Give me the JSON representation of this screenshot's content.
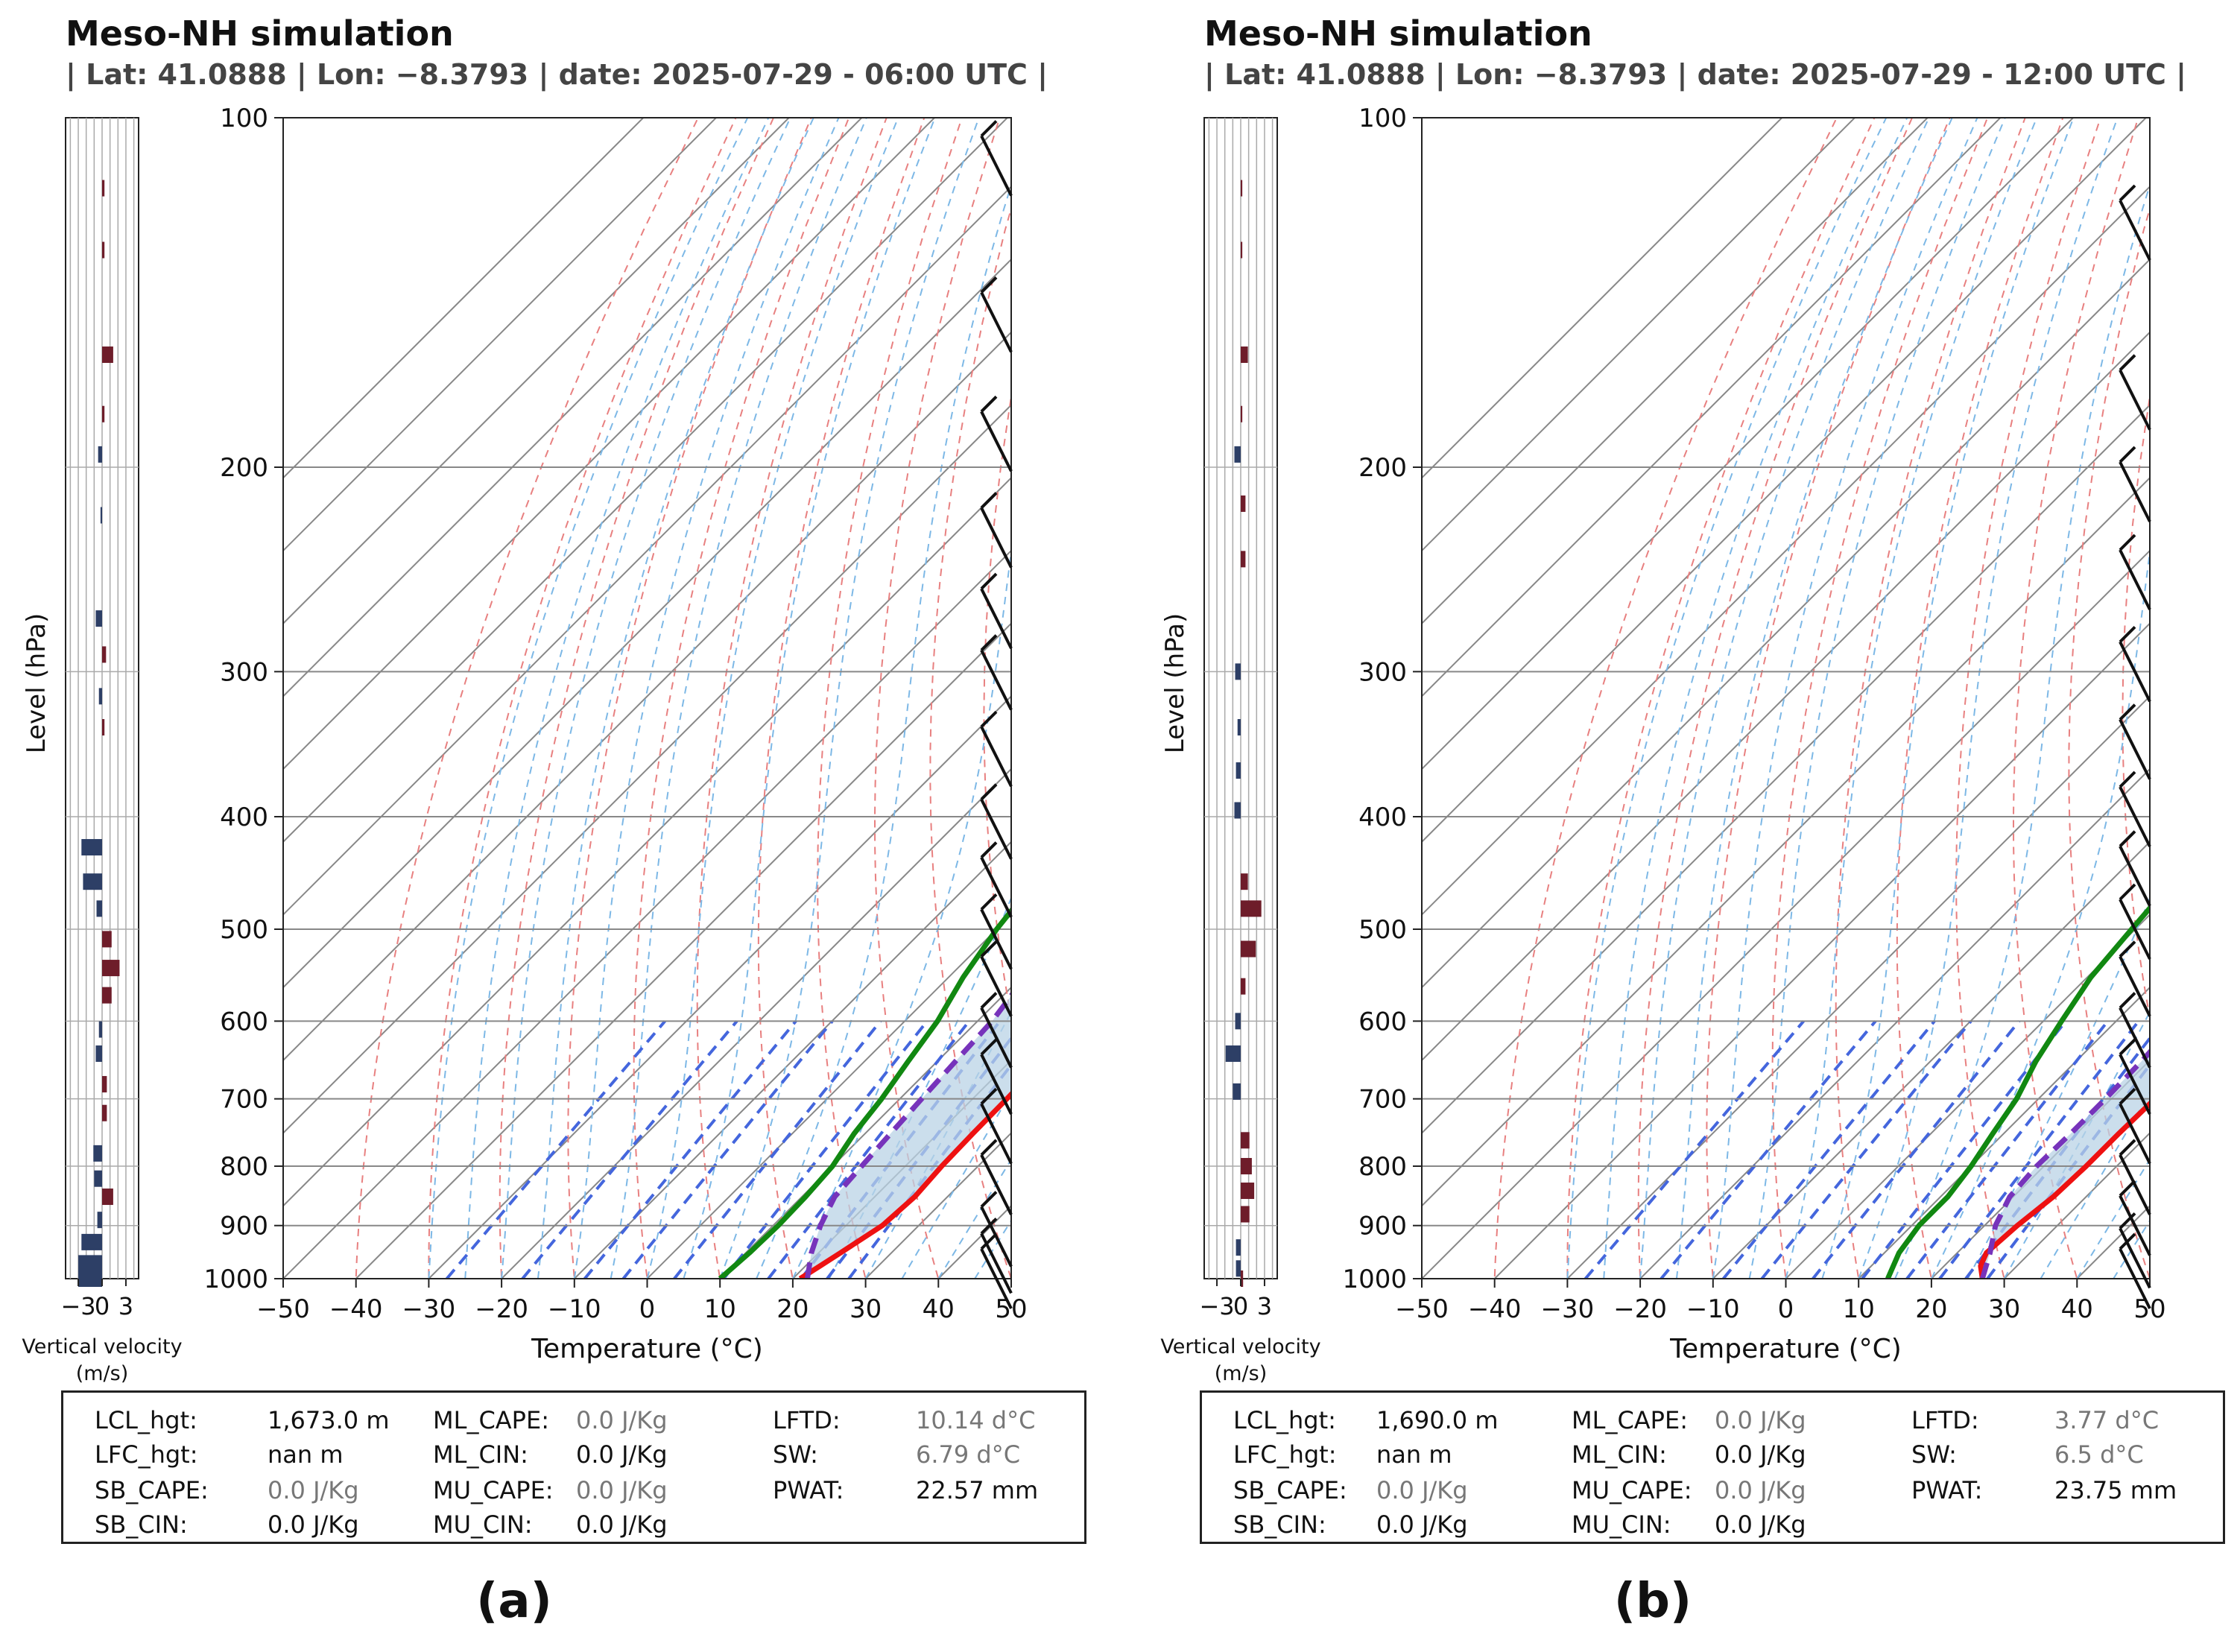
{
  "chart_data": [
    {
      "type": "line",
      "panel_label": "(a)",
      "title": "Meso-NH simulation",
      "subtitle": "| Lat: 41.0888 | Lon: −8.3793 | date: 2025-07-29 - 06:00 UTC |",
      "xlabel": "Temperature (°C)",
      "ylabel": "Level (hPa)",
      "xlim": [
        -50,
        50
      ],
      "ylim": [
        1000,
        100
      ],
      "y_scale": "log",
      "xticks": [
        "−50",
        "−40",
        "−30",
        "−20",
        "−10",
        "0",
        "10",
        "20",
        "30",
        "40",
        "50"
      ],
      "yticks": [
        "100",
        "200",
        "300",
        "400",
        "500",
        "600",
        "700",
        "800",
        "900",
        "1000"
      ],
      "series": [
        {
          "role": "temperature",
          "color": "#ee1111",
          "points": [
            [
              1000,
              21
            ],
            [
              975,
              22
            ],
            [
              950,
              23
            ],
            [
              900,
              25
            ],
            [
              850,
              25.5
            ],
            [
              800,
              25
            ],
            [
              750,
              24.8
            ],
            [
              700,
              24.7
            ],
            [
              650,
              24.5
            ],
            [
              600,
              23.5
            ],
            [
              550,
              21.5
            ],
            [
              500,
              19.5
            ],
            [
              450,
              17
            ],
            [
              400,
              14.5
            ],
            [
              350,
              12
            ],
            [
              300,
              9.5
            ],
            [
              250,
              7.5
            ],
            [
              200,
              7
            ],
            [
              175,
              8.5
            ],
            [
              150,
              9.5
            ],
            [
              125,
              11.5
            ],
            [
              100,
              14
            ]
          ]
        },
        {
          "role": "dewpoint",
          "color": "#118811",
          "points": [
            [
              1000,
              10
            ],
            [
              950,
              10.5
            ],
            [
              900,
              10.7
            ],
            [
              850,
              10.5
            ],
            [
              800,
              10
            ],
            [
              750,
              8.5
            ],
            [
              700,
              7.5
            ],
            [
              650,
              6
            ],
            [
              600,
              4.5
            ],
            [
              550,
              2
            ],
            [
              500,
              0
            ],
            [
              450,
              -1.5
            ],
            [
              400,
              -3
            ],
            [
              350,
              -4
            ],
            [
              300,
              -5
            ],
            [
              250,
              -6
            ],
            [
              200,
              -7
            ],
            [
              175,
              -6
            ],
            [
              150,
              -5
            ],
            [
              125,
              -3
            ],
            [
              100,
              0
            ]
          ]
        },
        {
          "role": "parcel",
          "color": "#7733bb",
          "points": [
            [
              1000,
              22
            ],
            [
              950,
              19
            ],
            [
              900,
              16.5
            ],
            [
              850,
              14.5
            ],
            [
              800,
              14
            ],
            [
              750,
              13.5
            ],
            [
              700,
              13
            ],
            [
              650,
              12.5
            ],
            [
              600,
              12
            ],
            [
              550,
              10.5
            ],
            [
              500,
              9
            ],
            [
              450,
              7
            ],
            [
              400,
              4.5
            ],
            [
              350,
              1.5
            ],
            [
              300,
              -2
            ],
            [
              250,
              -6
            ],
            [
              200,
              -11
            ],
            [
              175,
              -13.5
            ],
            [
              150,
              -16
            ],
            [
              125,
              -17.5
            ],
            [
              100,
              -19
            ]
          ]
        }
      ],
      "wind_barbs_levels_hPa": [
        110,
        150,
        190,
        230,
        270,
        305,
        355,
        410,
        460,
        510,
        560,
        620,
        680,
        750,
        830,
        920,
        970,
        1000
      ],
      "vertical_velocity": {
        "xlabel": "Vertical velocity\n(m/s)",
        "xticks": [
          "−3",
          "0",
          "3"
        ],
        "values": [
          [
            115,
            0.3
          ],
          [
            130,
            0.3
          ],
          [
            160,
            1.4
          ],
          [
            180,
            0.3
          ],
          [
            195,
            -0.5
          ],
          [
            220,
            -0.2
          ],
          [
            270,
            -0.8
          ],
          [
            290,
            0.5
          ],
          [
            315,
            -0.4
          ],
          [
            335,
            0.3
          ],
          [
            425,
            -2.6
          ],
          [
            455,
            -2.4
          ],
          [
            480,
            -0.7
          ],
          [
            510,
            1.2
          ],
          [
            540,
            2.2
          ],
          [
            570,
            1.2
          ],
          [
            610,
            -0.4
          ],
          [
            640,
            -0.8
          ],
          [
            680,
            0.6
          ],
          [
            720,
            0.6
          ],
          [
            780,
            -1.1
          ],
          [
            820,
            -1.0
          ],
          [
            850,
            1.4
          ],
          [
            890,
            -0.6
          ],
          [
            930,
            -2.6
          ],
          [
            970,
            -3.0
          ],
          [
            1000,
            -3.0
          ]
        ]
      },
      "indices": {
        "LCL_hgt": "1,673.0 m",
        "LFC_hgt": "nan m",
        "SB_CAPE": "0.0 J/Kg",
        "SB_CIN": "0.0 J/Kg",
        "ML_CAPE": "0.0 J/Kg",
        "ML_CIN": "0.0 J/Kg",
        "MU_CAPE": "0.0 J/Kg",
        "MU_CIN": "0.0 J/Kg",
        "LFTD": "10.14 d°C",
        "SW": "6.79 d°C",
        "PWAT": "22.57 mm"
      }
    },
    {
      "type": "line",
      "panel_label": "(b)",
      "title": "Meso-NH simulation",
      "subtitle": "| Lat: 41.0888 | Lon: −8.3793 | date: 2025-07-29 - 12:00 UTC |",
      "xlabel": "Temperature (°C)",
      "ylabel": "Level (hPa)",
      "xlim": [
        -50,
        50
      ],
      "ylim": [
        1000,
        100
      ],
      "y_scale": "log",
      "xticks": [
        "−50",
        "−40",
        "−30",
        "−20",
        "−10",
        "0",
        "10",
        "20",
        "30",
        "40",
        "50"
      ],
      "yticks": [
        "100",
        "200",
        "300",
        "400",
        "500",
        "600",
        "700",
        "800",
        "900",
        "1000"
      ],
      "series": [
        {
          "role": "temperature",
          "color": "#ee1111",
          "points": [
            [
              1000,
              27
            ],
            [
              975,
              25
            ],
            [
              950,
              24
            ],
            [
              900,
              24.5
            ],
            [
              850,
              25.5
            ],
            [
              800,
              25.8
            ],
            [
              750,
              25.8
            ],
            [
              700,
              26
            ],
            [
              650,
              25
            ],
            [
              600,
              23
            ],
            [
              550,
              21.5
            ],
            [
              500,
              20
            ],
            [
              450,
              17.5
            ],
            [
              400,
              15
            ],
            [
              350,
              13
            ],
            [
              300,
              12
            ],
            [
              250,
              11.5
            ],
            [
              200,
              11.5
            ],
            [
              175,
              12.5
            ],
            [
              150,
              13.5
            ],
            [
              125,
              15.5
            ],
            [
              100,
              26
            ]
          ]
        },
        {
          "role": "dewpoint",
          "color": "#118811",
          "points": [
            [
              1000,
              14
            ],
            [
              950,
              12
            ],
            [
              900,
              11
            ],
            [
              850,
              11
            ],
            [
              800,
              10
            ],
            [
              750,
              8.5
            ],
            [
              700,
              7
            ],
            [
              650,
              4.5
            ],
            [
              600,
              2.5
            ],
            [
              550,
              0.5
            ],
            [
              500,
              -0.5
            ],
            [
              450,
              -1.5
            ],
            [
              400,
              -0.5
            ],
            [
              350,
              -1
            ],
            [
              300,
              -2.5
            ],
            [
              250,
              -4.5
            ],
            [
              200,
              -4.5
            ],
            [
              175,
              -3
            ],
            [
              150,
              -1.5
            ],
            [
              125,
              1
            ],
            [
              100,
              9
            ]
          ]
        },
        {
          "role": "parcel",
          "color": "#7733bb",
          "points": [
            [
              1000,
              27
            ],
            [
              950,
              24.5
            ],
            [
              900,
              21.5
            ],
            [
              850,
              19.5
            ],
            [
              800,
              19
            ],
            [
              750,
              19.2
            ],
            [
              700,
              19.2
            ],
            [
              650,
              19
            ],
            [
              600,
              18.5
            ],
            [
              550,
              17.5
            ],
            [
              500,
              16.5
            ],
            [
              450,
              15
            ],
            [
              400,
              12.5
            ],
            [
              350,
              9
            ],
            [
              300,
              5.5
            ],
            [
              250,
              1
            ],
            [
              200,
              -3.5
            ],
            [
              175,
              -6
            ],
            [
              150,
              -8
            ],
            [
              125,
              -9
            ],
            [
              100,
              -10
            ]
          ]
        }
      ],
      "wind_barbs_levels_hPa": [
        125,
        175,
        210,
        250,
        300,
        350,
        400,
        450,
        500,
        560,
        620,
        680,
        750,
        830,
        900,
        960,
        1000
      ],
      "vertical_velocity": {
        "xlabel": "Vertical velocity\n(m/s)",
        "xticks": [
          "−3",
          "0",
          "3"
        ],
        "values": [
          [
            115,
            0.2
          ],
          [
            130,
            0.2
          ],
          [
            160,
            0.9
          ],
          [
            180,
            0.2
          ],
          [
            195,
            -0.8
          ],
          [
            215,
            0.6
          ],
          [
            240,
            0.6
          ],
          [
            300,
            -0.7
          ],
          [
            335,
            -0.4
          ],
          [
            365,
            -0.6
          ],
          [
            395,
            -0.8
          ],
          [
            455,
            0.9
          ],
          [
            480,
            2.6
          ],
          [
            520,
            1.9
          ],
          [
            560,
            0.6
          ],
          [
            600,
            -0.7
          ],
          [
            640,
            -1.9
          ],
          [
            690,
            -1.0
          ],
          [
            760,
            1.1
          ],
          [
            800,
            1.4
          ],
          [
            840,
            1.7
          ],
          [
            880,
            1.1
          ],
          [
            940,
            -0.6
          ],
          [
            980,
            -0.6
          ],
          [
            1000,
            0.3
          ]
        ]
      },
      "indices": {
        "LCL_hgt": "1,690.0 m",
        "LFC_hgt": "nan m",
        "SB_CAPE": "0.0 J/Kg",
        "SB_CIN": "0.0 J/Kg",
        "ML_CAPE": "0.0 J/Kg",
        "ML_CIN": "0.0 J/Kg",
        "MU_CAPE": "0.0 J/Kg",
        "MU_CIN": "0.0 J/Kg",
        "LFTD": "3.77 d°C",
        "SW": "6.5 d°C",
        "PWAT": "23.75 mm"
      }
    }
  ],
  "labels": {
    "LCL_hgt": "LCL_hgt:",
    "LFC_hgt": "LFC_hgt:",
    "SB_CAPE": "SB_CAPE:",
    "SB_CIN": "SB_CIN:",
    "ML_CAPE": "ML_CAPE:",
    "ML_CIN": "ML_CIN:",
    "MU_CAPE": "MU_CAPE:",
    "MU_CIN": "MU_CIN:",
    "LFTD": "LFTD:",
    "SW": "SW:",
    "PWAT": "PWAT:"
  },
  "colors": {
    "cape_fill": "#b9d3e6",
    "isotherm": "#555555",
    "dry_adiabat": "#e88080",
    "moist_adiabat": "#7db8e6",
    "mixing_ratio": "#4466dd",
    "vv_pos": "#6e1d2a",
    "vv_neg": "#2d3f66"
  }
}
